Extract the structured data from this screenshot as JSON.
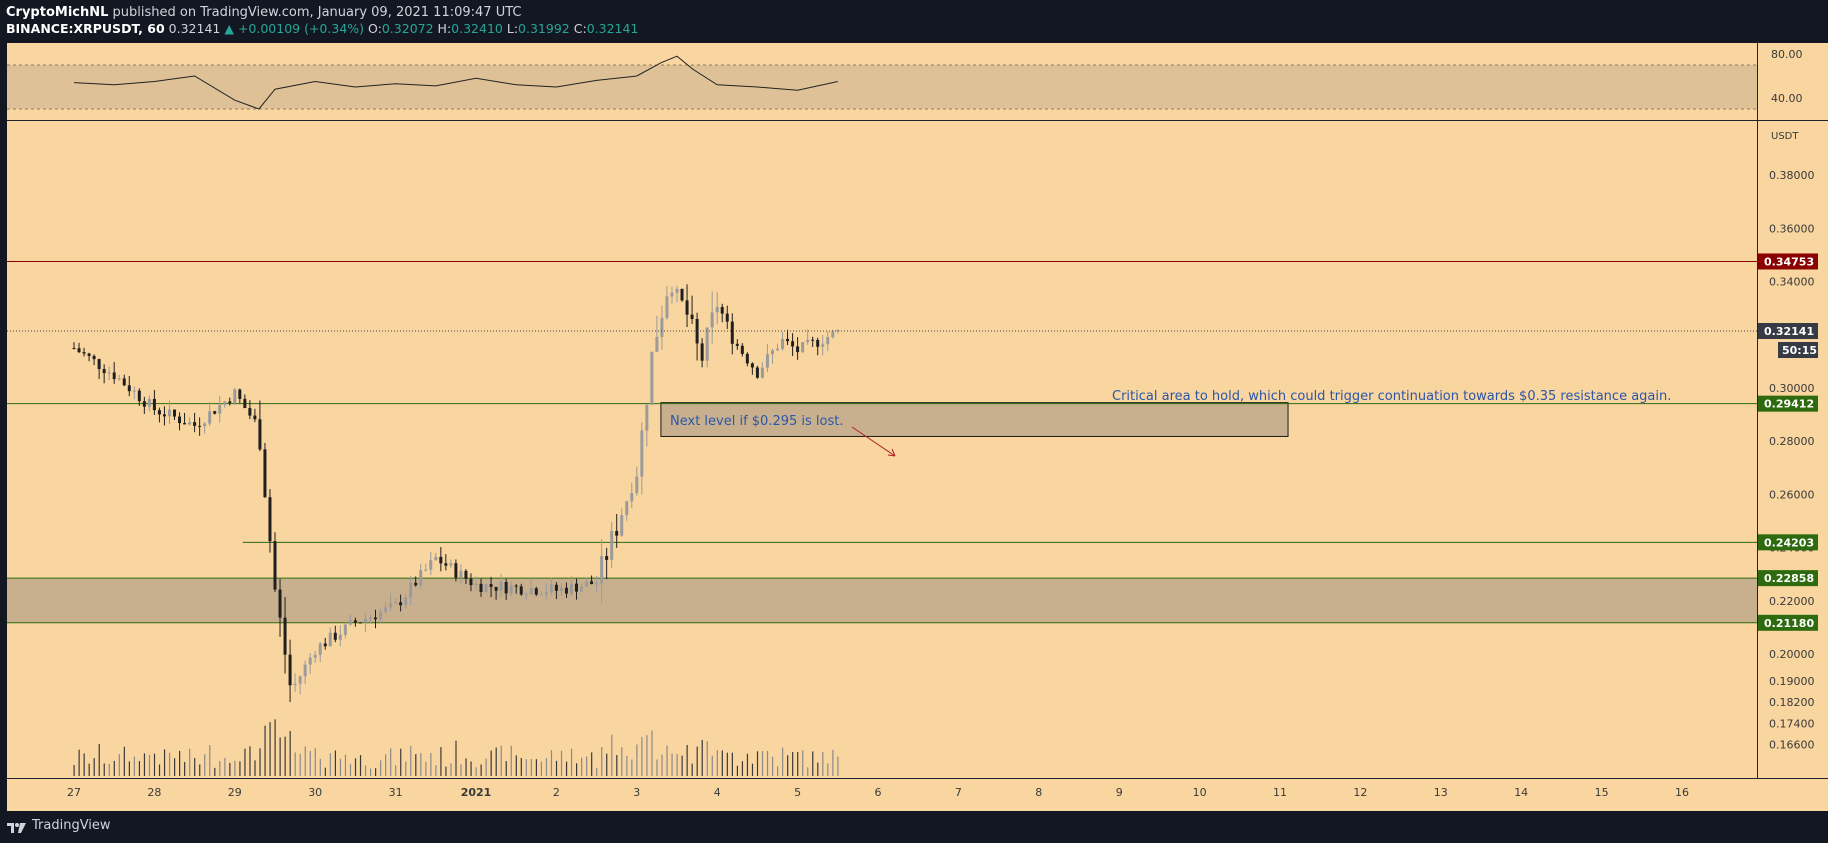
{
  "header": {
    "author": "CryptoMichNL",
    "publish_text": "published on TradingView.com, January 09, 2021 11:09:47 UTC",
    "symbol": "BINANCE:XRPUSDT, 60",
    "last": "0.32141",
    "change": "▲ +0.00109 (+0.34%)",
    "o_label": "O:",
    "o_value": "0.32072",
    "h_label": "H:",
    "h_value": "0.32410",
    "l_label": "L:",
    "l_value": "0.31992",
    "c_label": "C:",
    "c_value": "0.32141"
  },
  "footer": {
    "brand": "TradingView"
  },
  "colors": {
    "background": "#f9d5a0",
    "frame": "#131722",
    "zone_fill": "#c8b08e",
    "resistance_red": "#8b0000",
    "support_green": "#2e6b0f",
    "last_price_tag": "#363a45",
    "annotation_blue": "#2b56a8",
    "arrow_red": "#b22222"
  },
  "chart_data": [
    {
      "type": "line",
      "name": "RSI",
      "ylim": [
        20,
        90
      ],
      "ticks": [
        "80.00",
        "40.00"
      ],
      "band": [
        30,
        70
      ],
      "x": [
        0,
        0.5,
        1,
        1.5,
        2,
        2.3,
        2.5,
        3,
        3.5,
        4,
        4.5,
        5,
        5.5,
        6,
        6.5,
        7,
        7.3,
        7.5,
        7.7,
        8,
        8.5,
        9,
        9.5
      ],
      "y": [
        54,
        52,
        55,
        60,
        38,
        30,
        48,
        55,
        50,
        53,
        51,
        58,
        52,
        50,
        56,
        60,
        72,
        78,
        66,
        52,
        50,
        47,
        55
      ]
    },
    {
      "type": "candlestick",
      "symbol": "XRPUSDT",
      "unit_label": "USDT",
      "ylim": [
        0.1535,
        0.4003
      ],
      "price_ticks": [
        "0.38000",
        "0.36000",
        "0.34000",
        "0.32000",
        "0.30000",
        "0.28000",
        "0.26000",
        "0.24000",
        "0.22000",
        "0.20000",
        "0.19000",
        "0.18200",
        "0.17400",
        "0.16600"
      ],
      "x_ticks": [
        "27",
        "28",
        "29",
        "30",
        "31",
        "2021",
        "2",
        "3",
        "4",
        "5",
        "6",
        "7",
        "8",
        "9",
        "10",
        "11",
        "12",
        "13",
        "14",
        "15",
        "16"
      ],
      "x": [
        0,
        0.5,
        1,
        1.5,
        2,
        2.3,
        2.5,
        2.7,
        3,
        3.5,
        4,
        4.5,
        5,
        5.5,
        6,
        6.5,
        6.8,
        7,
        7.2,
        7.4,
        7.6,
        7.8,
        8,
        8.2,
        8.5,
        8.8,
        9,
        9.5
      ],
      "close": [
        0.315,
        0.305,
        0.292,
        0.286,
        0.298,
        0.285,
        0.224,
        0.186,
        0.202,
        0.212,
        0.218,
        0.236,
        0.226,
        0.225,
        0.224,
        0.227,
        0.252,
        0.268,
        0.315,
        0.34,
        0.33,
        0.31,
        0.332,
        0.318,
        0.306,
        0.318,
        0.314,
        0.321
      ],
      "last_price": "0.32141",
      "countdown": "50:15",
      "levels": [
        {
          "label": "0.34753",
          "kind": "resistance"
        },
        {
          "label": "0.29412",
          "kind": "support"
        },
        {
          "label": "0.24203",
          "kind": "support"
        },
        {
          "label": "0.22858",
          "kind": "support"
        },
        {
          "label": "0.21180",
          "kind": "support"
        }
      ],
      "zones": [
        {
          "from": 0.2118,
          "to": 0.2285
        },
        {
          "from": 0.2818,
          "to": 0.2945
        }
      ],
      "annotations": [
        "Next level if $0.295 is lost.",
        "Critical area to hold, which could trigger continuation towards $0.35 resistance again."
      ]
    }
  ]
}
